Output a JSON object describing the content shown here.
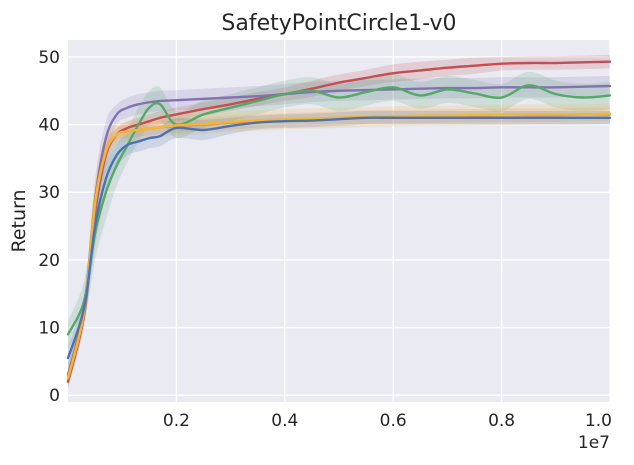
{
  "chart_data": {
    "type": "line",
    "title": "SafetyPointCircle1-v0",
    "xlabel": "",
    "ylabel": "Return",
    "x_offset_label": "1e7",
    "xlim": [
      0,
      1.0
    ],
    "ylim": [
      -1,
      52.5
    ],
    "x_ticks": [
      0.2,
      0.4,
      0.6,
      0.8,
      1.0
    ],
    "x_tick_labels": [
      "0.2",
      "0.4",
      "0.6",
      "0.8",
      "1.0"
    ],
    "y_ticks": [
      0,
      10,
      20,
      30,
      40,
      50
    ],
    "y_tick_labels": [
      "0",
      "10",
      "20",
      "30",
      "40",
      "50"
    ],
    "grid": true,
    "background": "#eaeaf2",
    "x": [
      0,
      0.03,
      0.05,
      0.07,
      0.09,
      0.11,
      0.13,
      0.15,
      0.17,
      0.2,
      0.25,
      0.3,
      0.35,
      0.4,
      0.45,
      0.5,
      0.55,
      0.6,
      0.65,
      0.7,
      0.75,
      0.8,
      0.85,
      0.9,
      0.95,
      1.0
    ],
    "series": [
      {
        "color": "#c44e52",
        "values": [
          2.0,
          12.0,
          27.0,
          35.5,
          38.5,
          39.5,
          40.0,
          40.5,
          41.0,
          41.5,
          42.3,
          43.0,
          43.8,
          44.5,
          45.3,
          46.2,
          46.9,
          47.6,
          48.0,
          48.4,
          48.7,
          49.0,
          49.1,
          49.1,
          49.2,
          49.3
        ],
        "band": [
          1.0,
          1.5,
          2.0,
          1.5,
          1.0,
          1.0,
          1.0,
          1.0,
          1.0,
          1.0,
          1.0,
          1.0,
          1.0,
          1.0,
          1.2,
          1.2,
          1.2,
          1.3,
          1.3,
          1.2,
          1.2,
          1.0,
          1.0,
          1.0,
          1.0,
          1.0
        ]
      },
      {
        "color": "#8172b2",
        "values": [
          3.0,
          13.0,
          29.0,
          38.0,
          41.5,
          42.5,
          43.0,
          43.3,
          43.5,
          43.6,
          43.8,
          44.0,
          44.2,
          44.5,
          44.8,
          45.0,
          45.1,
          45.2,
          45.3,
          45.4,
          45.4,
          45.5,
          45.5,
          45.5,
          45.6,
          45.7
        ],
        "band": [
          1.5,
          2.0,
          3.0,
          2.5,
          1.5,
          1.5,
          1.5,
          1.5,
          1.5,
          1.5,
          1.5,
          1.5,
          1.5,
          1.5,
          1.5,
          1.5,
          1.5,
          1.5,
          1.5,
          1.5,
          1.5,
          1.5,
          1.5,
          1.5,
          1.5,
          1.5
        ]
      },
      {
        "color": "#55a868",
        "values": [
          9.0,
          14.0,
          24.0,
          30.0,
          34.0,
          37.0,
          40.0,
          42.5,
          43.0,
          40.0,
          41.5,
          42.5,
          43.5,
          44.5,
          45.0,
          44.0,
          44.8,
          45.5,
          44.3,
          45.2,
          44.6,
          44.0,
          45.8,
          44.5,
          44.0,
          44.3
        ],
        "band": [
          2.0,
          3.0,
          4.0,
          4.0,
          3.0,
          2.5,
          2.5,
          2.5,
          2.5,
          2.0,
          2.0,
          2.0,
          2.0,
          2.0,
          2.0,
          2.0,
          2.0,
          2.0,
          2.0,
          2.0,
          2.0,
          2.0,
          2.0,
          2.0,
          2.0,
          2.0
        ]
      },
      {
        "color": "#dd8452",
        "values": [
          2.5,
          12.5,
          28.0,
          36.0,
          38.5,
          39.0,
          39.2,
          39.4,
          39.6,
          39.8,
          40.0,
          40.3,
          40.5,
          40.7,
          40.8,
          41.0,
          41.1,
          41.2,
          41.2,
          41.3,
          41.3,
          41.4,
          41.4,
          41.4,
          41.5,
          41.5
        ],
        "band": [
          1.0,
          1.5,
          2.0,
          1.5,
          1.0,
          1.0,
          1.0,
          1.0,
          1.0,
          1.0,
          1.0,
          1.0,
          1.0,
          1.0,
          1.0,
          1.0,
          1.0,
          1.0,
          1.0,
          1.0,
          1.0,
          1.0,
          1.0,
          1.0,
          1.0,
          1.0
        ]
      },
      {
        "color": "#f2b632",
        "values": [
          2.5,
          12.5,
          28.5,
          36.0,
          38.5,
          39.0,
          39.2,
          39.4,
          39.6,
          39.9,
          40.1,
          40.4,
          40.6,
          40.8,
          40.9,
          41.0,
          41.1,
          41.2,
          41.3,
          41.3,
          41.4,
          41.4,
          41.5,
          41.5,
          41.5,
          41.6
        ],
        "band": [
          1.5,
          2.0,
          3.0,
          2.5,
          1.5,
          1.5,
          1.5,
          1.5,
          1.5,
          1.5,
          1.5,
          1.5,
          1.5,
          1.5,
          1.5,
          1.5,
          1.5,
          1.5,
          1.5,
          1.5,
          1.5,
          1.5,
          1.5,
          1.5,
          1.5,
          1.5
        ]
      },
      {
        "color": "#4c72b0",
        "values": [
          5.5,
          13.0,
          25.0,
          32.0,
          35.5,
          37.0,
          37.5,
          38.0,
          38.3,
          39.5,
          39.2,
          39.8,
          40.3,
          40.5,
          40.6,
          40.8,
          41.0,
          41.0,
          41.0,
          41.0,
          41.0,
          41.0,
          41.0,
          41.0,
          41.0,
          41.0
        ],
        "band": [
          1.5,
          2.0,
          3.0,
          2.5,
          2.0,
          1.5,
          1.5,
          1.5,
          1.5,
          1.5,
          1.5,
          1.2,
          1.0,
          1.0,
          1.0,
          1.0,
          1.0,
          1.0,
          1.0,
          1.0,
          1.0,
          1.0,
          1.0,
          1.0,
          1.0,
          1.0
        ]
      }
    ]
  }
}
